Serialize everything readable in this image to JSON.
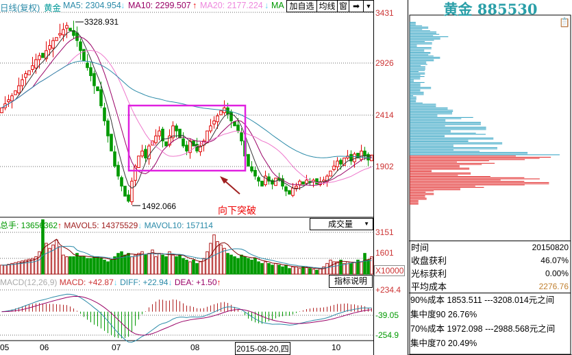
{
  "header": {
    "period": "日线(复权)",
    "name": "黄金",
    "ma5": "MA5: 2304.954",
    "ma10": "MA10: 2299.507",
    "ma20": "MA20: 2177.224",
    "ma60": "MA",
    "buttons": [
      "加自选",
      "均线",
      "窗"
    ]
  },
  "title": "黄金 885530",
  "price_axis": [
    "3431",
    "2926",
    "2414",
    "1902"
  ],
  "annotations": {
    "high": "3328.931",
    "low": "1492.066",
    "breakout": "向下突破"
  },
  "volume": {
    "total": "总手: 13656362",
    "mavol5": "MAVOL5: 14375529",
    "mavol10": "MAVOL10: 157114",
    "selector": "成交量",
    "axis": [
      "3151",
      "1601",
      "X10000"
    ]
  },
  "macd": {
    "label": "MACD(12,26,9)",
    "macd": "MACD: +42.87",
    "diff": "DIFF: +22.94",
    "dea": "DEA: +1.50",
    "help": "指标说明",
    "axis": [
      "+234.4",
      "-39.05",
      "-254.9"
    ]
  },
  "x_axis": {
    "ticks": [
      "05",
      "06",
      "07",
      "08",
      "10"
    ],
    "cursor": "2015-08-20,四"
  },
  "info": {
    "rows": [
      [
        "时间",
        "20150820"
      ],
      [
        "收盘获利",
        "46.07%"
      ],
      [
        "光标获利",
        "0.00%"
      ],
      [
        "平均成本",
        "2276.76"
      ]
    ],
    "cost90": "90%成本 1853.511 ---3208.014元之间",
    "conc90": "集中度90  26.76%",
    "cost70": "70%成本 1972.098 ---2988.568元之间",
    "conc70": "集中度70  20.49%"
  },
  "colors": {
    "up": "#e00000",
    "down": "#009900",
    "ma5": "#333333",
    "ma10": "#990066",
    "ma20": "#ee77cc",
    "ma60": "#2a8aa8",
    "title": "#2a9fa8",
    "avg_cost": "#c08030"
  },
  "chart_data": {
    "type": "candlestick",
    "ylim": [
      1492,
      3431
    ],
    "closes": [
      2480,
      2520,
      2560,
      2600,
      2650,
      2700,
      2760,
      2820,
      2850,
      2900,
      2960,
      3000,
      2980,
      3050,
      3100,
      3150,
      3180,
      3220,
      3260,
      3300,
      3250,
      3200,
      3150,
      3050,
      2950,
      2880,
      2800,
      2700,
      2650,
      2500,
      2350,
      2200,
      2050,
      1900,
      1800,
      1700,
      1600,
      1550,
      1750,
      1900,
      2000,
      2050,
      1980,
      2100,
      2150,
      2200,
      2250,
      2150,
      2100,
      2200,
      2300,
      2250,
      2180,
      2100,
      2050,
      2150,
      2100,
      2050,
      2100,
      2150,
      2250,
      2300,
      2350,
      2400,
      2450,
      2480,
      2420,
      2350,
      2300,
      2250,
      2150,
      2000,
      1900,
      1850,
      1800,
      1750,
      1700,
      1800,
      1750,
      1720,
      1780,
      1760,
      1700,
      1650,
      1620,
      1680,
      1700,
      1750,
      1720,
      1760,
      1740,
      1760,
      1720,
      1740,
      1760,
      1800,
      1850,
      1900,
      1950,
      1920,
      1980,
      2000,
      1950,
      2020,
      1980,
      2050,
      2000,
      1960,
      2010
    ],
    "volumes": [
      1200,
      1200,
      1250,
      1300,
      1350,
      1400,
      1450,
      1500,
      1550,
      1600,
      1700,
      2000,
      3900,
      2500,
      2200,
      2400,
      2700,
      2300,
      1800,
      1700,
      1700,
      1700,
      1900,
      1700,
      1700,
      1600,
      1600,
      1700,
      1700,
      1600,
      1500,
      1400,
      1500,
      1700,
      1900,
      2000,
      1800,
      1900,
      1700,
      1800,
      1900,
      2000,
      1800,
      1900,
      2100,
      1700,
      1900,
      1800,
      1700,
      2000,
      1800,
      1700,
      1800,
      1600,
      1500,
      1400,
      1500,
      1300,
      1400,
      1600,
      2000,
      2500,
      3000,
      2600,
      2400,
      2200,
      1900,
      1800,
      1700,
      1600,
      1800,
      1700,
      1600,
      1500,
      1600,
      1400,
      1300,
      1400,
      1300,
      1200,
      1300,
      1200,
      1100,
      1200,
      1000,
      1100,
      1100,
      1000,
      1100,
      1050,
      1000,
      950,
      900,
      1000,
      1100,
      1300,
      1500,
      1400,
      1400,
      1500,
      1300,
      1400,
      1300,
      1350,
      1500,
      1400,
      1900,
      1500,
      1700
    ]
  }
}
